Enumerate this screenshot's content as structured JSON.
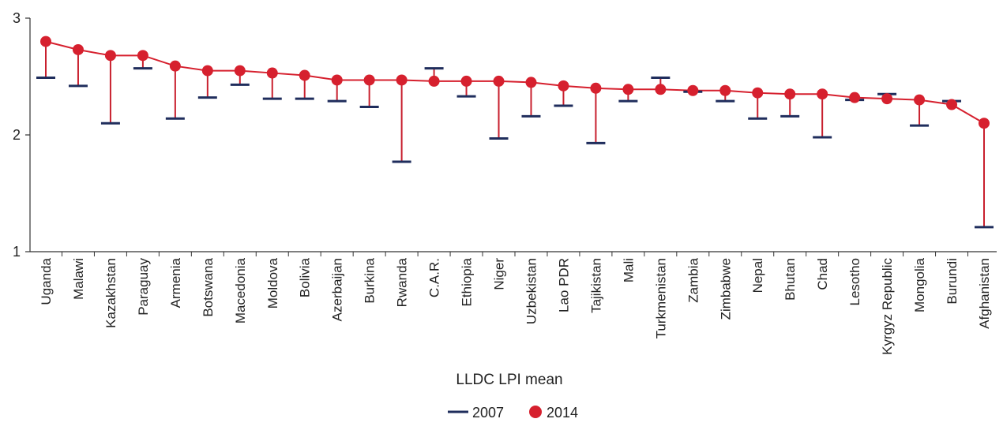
{
  "chart_data": {
    "type": "line",
    "title": "LLDC LPI mean",
    "xlabel": "",
    "ylabel": "",
    "ylim": [
      1,
      3
    ],
    "yticks": [
      "1",
      "2",
      "3"
    ],
    "grid": false,
    "legend_position": "bottom-center",
    "categories": [
      "Uganda",
      "Malawi",
      "Kazakhstan",
      "Paraguay",
      "Armenia",
      "Botswana",
      "Macedonia",
      "Moldova",
      "Bolivia",
      "Azerbaijan",
      "Burkina",
      "Rwanda",
      "C.A.R.",
      "Ethiopia",
      "Niger",
      "Uzbekistan",
      "Lao PDR",
      "Tajikistan",
      "Mali",
      "Turkmenistan",
      "Zambia",
      "Zimbabwe",
      "Nepal",
      "Bhutan",
      "Chad",
      "Lesotho",
      "Kyrgyz Republic",
      "Mongolia",
      "Burundi",
      "Afghanistan"
    ],
    "series": [
      {
        "name": "2007",
        "marker": "dash",
        "color": "#1f2d5c",
        "values": [
          2.49,
          2.42,
          2.1,
          2.57,
          2.14,
          2.32,
          2.43,
          2.31,
          2.31,
          2.29,
          2.24,
          1.77,
          2.57,
          2.33,
          1.97,
          2.16,
          2.25,
          1.93,
          2.29,
          2.49,
          2.37,
          2.29,
          2.14,
          2.16,
          1.98,
          2.3,
          2.35,
          2.08,
          2.29,
          1.21
        ]
      },
      {
        "name": "2014",
        "marker": "circle",
        "color": "#d6202e",
        "values": [
          2.8,
          2.73,
          2.68,
          2.68,
          2.59,
          2.55,
          2.55,
          2.53,
          2.51,
          2.47,
          2.47,
          2.47,
          2.46,
          2.46,
          2.46,
          2.45,
          2.42,
          2.4,
          2.39,
          2.39,
          2.38,
          2.38,
          2.36,
          2.35,
          2.35,
          2.32,
          2.31,
          2.3,
          2.26,
          2.1
        ]
      }
    ]
  },
  "colors": {
    "axis": "#333333",
    "connector": "#c8202e",
    "line_2014": "#d6202e",
    "marker_2014": "#d6202e",
    "marker_2007": "#1f2d5c"
  }
}
